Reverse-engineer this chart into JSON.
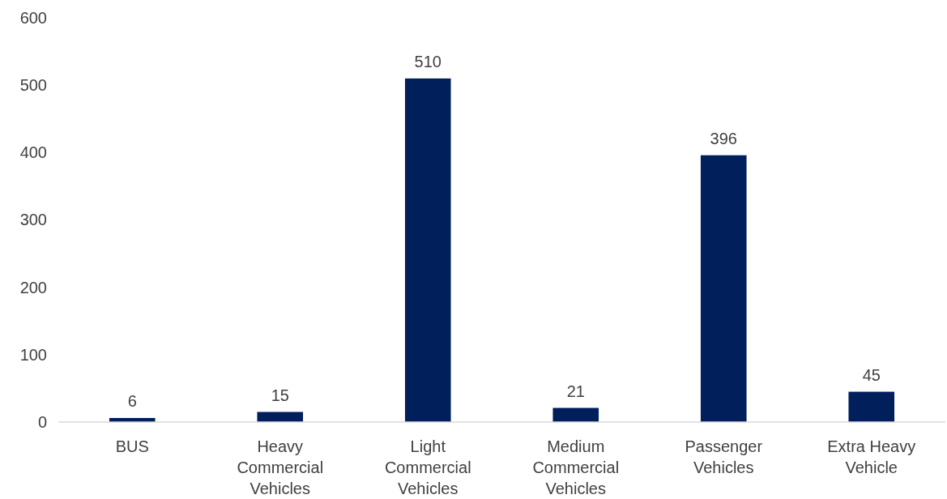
{
  "chart_data": {
    "type": "bar",
    "categories": [
      "BUS",
      "Heavy Commercial Vehicles",
      "Light Commercial Vehicles",
      "Medium Commercial Vehicles",
      "Passenger Vehicles",
      "Extra Heavy Vehicle"
    ],
    "values": [
      6,
      15,
      510,
      21,
      396,
      45
    ],
    "color": "#001f5b",
    "ylim": [
      0,
      600
    ],
    "yticks": [
      0,
      100,
      200,
      300,
      400,
      500,
      600
    ],
    "grid": false,
    "data_labels": true
  }
}
